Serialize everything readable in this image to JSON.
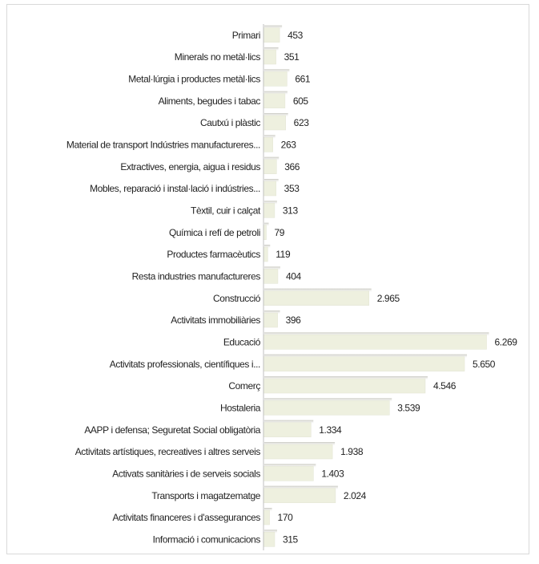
{
  "chart_data": {
    "type": "hbar",
    "categories": [
      "Primari",
      "Minerals no metàl·lics",
      "Metal·lúrgia i productes metàl·lics",
      "Aliments, begudes i tabac",
      "Cautxú i plàstic",
      "Material de transport Indústries manufactureres...",
      "Extractives, energia, aigua i residus",
      "Mobles, reparació i instal·lació i indústries...",
      "Tèxtil, cuir i calçat",
      "Química i refí de petroli",
      "Productes farmacèutics",
      "Resta industries manufactureres",
      "Construcció",
      "Activitats immobiliàries",
      "Educació",
      "Activitats professionals, científiques i...",
      "Comerç",
      "Hostaleria",
      "AAPP i defensa; Seguretat Social obligatòria",
      "Activitats artístiques, recreatives i altres serveis",
      "Activats sanitàries i de serveis socials",
      "Transports i magatzematge",
      "Activitats financeres i d'assegurances",
      "Informació i comunicacions"
    ],
    "values": [
      453,
      351,
      661,
      605,
      623,
      263,
      366,
      353,
      313,
      79,
      119,
      404,
      2965,
      396,
      6269,
      5650,
      4546,
      3539,
      1334,
      1938,
      1403,
      2024,
      170,
      315
    ],
    "value_labels": [
      "453",
      "351",
      "661",
      "605",
      "623",
      "263",
      "366",
      "353",
      "313",
      "79",
      "119",
      "404",
      "2.965",
      "396",
      "6.269",
      "5.650",
      "4.546",
      "3.539",
      "1.334",
      "1.938",
      "1.403",
      "2.024",
      "170",
      "315"
    ],
    "color": "#eef0df",
    "xlim": [
      0,
      7000
    ]
  }
}
